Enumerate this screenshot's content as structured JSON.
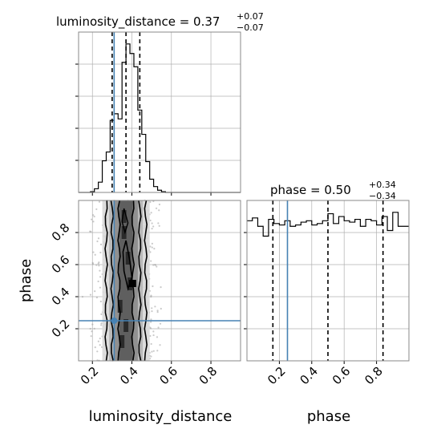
{
  "chart_data": {
    "type": "corner",
    "parameters": [
      "luminosity_distance",
      "phase"
    ],
    "truths": {
      "luminosity_distance": 0.31,
      "phase": 0.25
    },
    "panels": [
      {
        "name": "luminosity_distance-marginal",
        "type": "histogram",
        "title": {
          "label": "luminosity_distance = 0.37",
          "plus": "+0.07",
          "minus": "−0.07"
        },
        "xlim": [
          0.13,
          0.95
        ],
        "bin_edges": [
          0.13,
          0.15,
          0.17,
          0.19,
          0.21,
          0.23,
          0.25,
          0.27,
          0.29,
          0.31,
          0.33,
          0.35,
          0.37,
          0.39,
          0.41,
          0.43,
          0.45,
          0.47,
          0.49,
          0.51,
          0.53,
          0.55,
          0.57,
          0.59,
          0.61,
          0.63,
          0.65,
          0.67,
          0.69,
          0.71,
          0.73,
          0.75,
          0.77,
          0.79,
          0.81,
          0.83,
          0.85,
          0.87,
          0.89,
          0.91,
          0.93,
          0.95
        ],
        "counts": [
          0,
          0,
          0,
          1,
          5,
          14,
          43,
          55,
          98,
          107,
          100,
          177,
          202,
          189,
          171,
          112,
          79,
          42,
          18,
          8,
          3,
          1,
          0,
          0,
          0,
          0,
          0,
          0,
          0,
          0,
          0,
          0,
          0,
          0,
          0,
          0,
          0,
          0,
          0,
          0,
          0
        ],
        "quantiles": [
          0.3,
          0.37,
          0.44
        ],
        "truth": 0.31
      },
      {
        "name": "phase-marginal",
        "type": "histogram",
        "title": {
          "label": "phase = 0.50",
          "plus": "+0.34",
          "minus": "−0.34"
        },
        "xlim": [
          0.0,
          1.0
        ],
        "bin_edges": [
          0.0,
          0.03333,
          0.06667,
          0.1,
          0.13333,
          0.16667,
          0.2,
          0.23333,
          0.26667,
          0.3,
          0.33333,
          0.36667,
          0.4,
          0.43333,
          0.46667,
          0.5,
          0.53333,
          0.56667,
          0.6,
          0.63333,
          0.66667,
          0.7,
          0.73333,
          0.76667,
          0.8,
          0.83333,
          0.86667,
          0.9,
          0.93333,
          0.96667,
          1.0
        ],
        "counts": [
          100,
          102,
          96,
          89,
          101,
          98,
          97,
          100,
          96,
          97,
          99,
          100,
          97,
          98,
          100,
          105,
          98,
          103,
          100,
          99,
          101,
          96,
          101,
          100,
          97,
          103,
          93,
          106,
          96,
          96
        ],
        "quantiles": [
          0.16,
          0.5,
          0.84
        ],
        "truth": 0.25
      },
      {
        "name": "phase-vs-luminosity_distance",
        "type": "2d-density",
        "xlim": [
          0.13,
          0.95
        ],
        "ylim": [
          0.0,
          1.0
        ],
        "core_x_range": [
          0.3,
          0.45
        ],
        "points_x_range": [
          0.13,
          0.55
        ],
        "truth": [
          0.31,
          0.25
        ]
      }
    ],
    "axes": {
      "luminosity_distance": {
        "label": "luminosity_distance",
        "ticks": [
          "0.2",
          "0.4",
          "0.6",
          "0.8"
        ]
      },
      "phase": {
        "label": "phase",
        "ticks": [
          "0.2",
          "0.4",
          "0.6",
          "0.8"
        ]
      }
    },
    "colors": {
      "truth": "#4682b4",
      "hist": "#000000",
      "quantile": "#000000",
      "grid": "#b0b0b0",
      "points": "#9e9e9e",
      "density_dark": "#5a5a5a",
      "density_light": "#d9d9d9"
    }
  }
}
